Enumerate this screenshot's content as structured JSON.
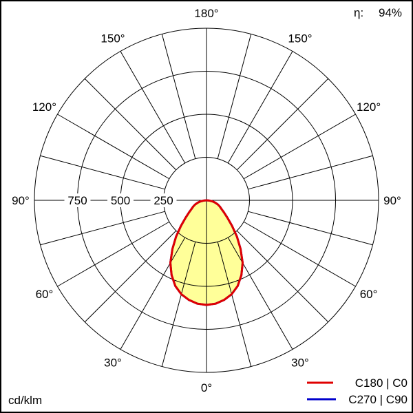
{
  "chart_data": {
    "type": "polar",
    "unit_label": "cd/klm",
    "efficiency_label": "η:",
    "efficiency_value": "94%",
    "radial_ticks": [
      250,
      500,
      750,
      1000
    ],
    "radial_tick_labels": [
      "250",
      "500",
      "750"
    ],
    "rmax": 1000,
    "angle_labels": [
      "0°",
      "30°",
      "60°",
      "90°",
      "120°",
      "150°",
      "180°"
    ],
    "angle_label_values": [
      0,
      30,
      60,
      90,
      120,
      150,
      180
    ],
    "spoke_step_deg": 15,
    "gamma": [
      0,
      5,
      10,
      15,
      20,
      25,
      30,
      35,
      40,
      45,
      50,
      55,
      60,
      65,
      70,
      75,
      80,
      85,
      90
    ],
    "series": [
      {
        "name": "C270 | C90",
        "color": "#0000cc",
        "values": [
          608,
          603,
          588,
          565,
          530,
          480,
          420,
          345,
          275,
          210,
          160,
          125,
          100,
          85,
          70,
          52,
          35,
          17,
          0
        ]
      },
      {
        "name": "C180 | C0",
        "color": "#e00000",
        "fill": "#ffff99",
        "values": [
          608,
          603,
          588,
          565,
          530,
          480,
          420,
          345,
          275,
          210,
          160,
          125,
          100,
          85,
          70,
          52,
          35,
          17,
          0
        ]
      }
    ]
  }
}
